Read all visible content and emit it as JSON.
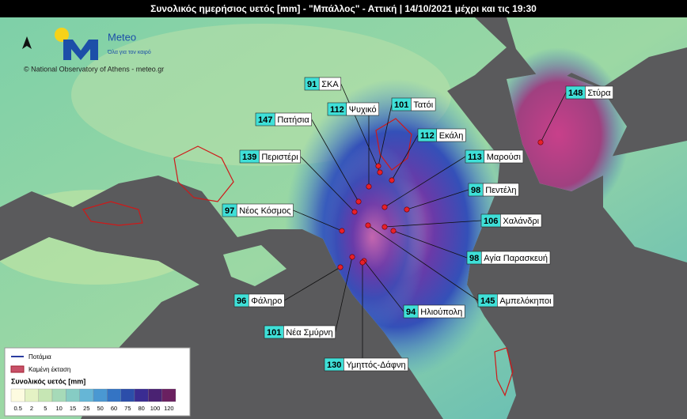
{
  "header": {
    "title": "Συνολικός ημερήσιος υετός [mm] - \"Μπάλλος\" - Αττική | 14/10/2021 μέχρι και τις 19:30"
  },
  "logo": {
    "name": "Meteo",
    "tagline": "Όλα για τον καιρό",
    "credit": "© National Observatory of Athens - meteo.gr"
  },
  "stations": [
    {
      "value": 91,
      "name": "ΣΚΑ"
    },
    {
      "value": 112,
      "name": "Ψυχικό"
    },
    {
      "value": 101,
      "name": "Τατόι"
    },
    {
      "value": 147,
      "name": "Πατήσια"
    },
    {
      "value": 112,
      "name": "Εκάλη"
    },
    {
      "value": 139,
      "name": "Περιστέρι"
    },
    {
      "value": 113,
      "name": "Μαρούσι"
    },
    {
      "value": 98,
      "name": "Πεντέλη"
    },
    {
      "value": 97,
      "name": "Νέος Κόσμος"
    },
    {
      "value": 106,
      "name": "Χαλάνδρι"
    },
    {
      "value": 98,
      "name": "Αγία Παρασκευή"
    },
    {
      "value": 96,
      "name": "Φάληρο"
    },
    {
      "value": 145,
      "name": "Αμπελόκηποι"
    },
    {
      "value": 94,
      "name": "Ηλιούπολη"
    },
    {
      "value": 101,
      "name": "Νέα Σμύρνη"
    },
    {
      "value": 130,
      "name": "Υμηττός-Δάφνη"
    },
    {
      "value": 148,
      "name": "Στύρα"
    }
  ],
  "legend": {
    "rivers": "Ποτάμια",
    "burned": "Καμένη έκταση",
    "title": "Συνολικός υετός [mm]",
    "ticks": [
      0.5,
      2,
      5,
      10,
      15,
      25,
      50,
      60,
      75,
      80,
      100,
      120
    ],
    "colors": [
      "#fdfbe0",
      "#e4f2c4",
      "#c6e6b4",
      "#a6dab8",
      "#86ccc4",
      "#66b6d6",
      "#4a98d2",
      "#3474c4",
      "#2c4eaa",
      "#3a2c92",
      "#4a2272",
      "#6a2060"
    ]
  }
}
